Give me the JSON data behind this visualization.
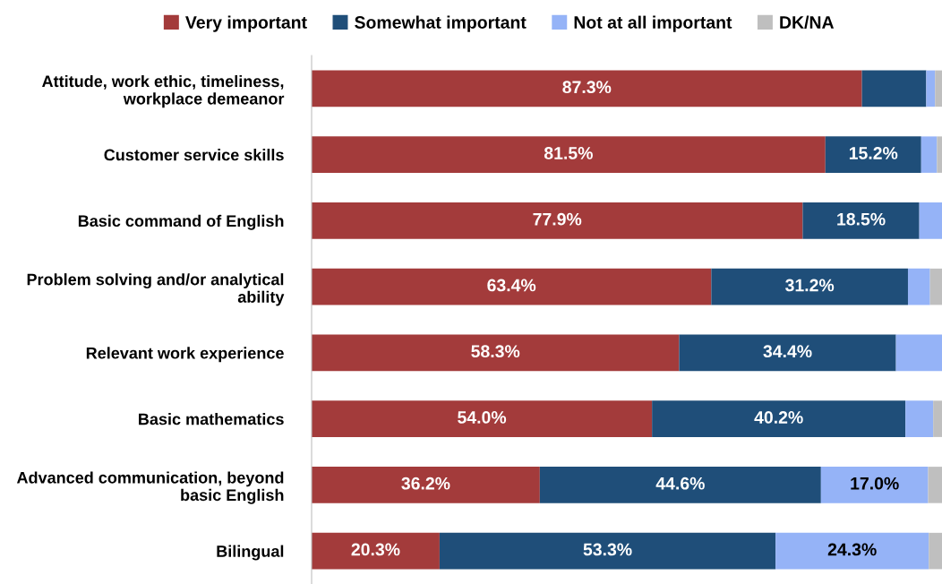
{
  "chart_data": {
    "type": "bar",
    "orientation": "horizontal",
    "stacked": true,
    "xlim": [
      0,
      100
    ],
    "grid": false,
    "legend": "top",
    "categories": [
      "Attitude, work ethic, timeliness,\nworkplace demeanor",
      "Customer service skills",
      "Basic command of English",
      "Problem solving and/or analytical\nability",
      "Relevant work experience",
      "Basic mathematics",
      "Advanced communication, beyond\nbasic English",
      "Bilingual"
    ],
    "series": [
      {
        "name": "Very important",
        "color": "#a33b3b",
        "values": [
          87.3,
          81.5,
          77.9,
          63.4,
          58.3,
          54.0,
          36.2,
          20.3
        ],
        "value_labels": [
          "87.3%",
          "81.5%",
          "77.9%",
          "63.4%",
          "58.3%",
          "54.0%",
          "36.2%",
          "20.3%"
        ]
      },
      {
        "name": "Somewhat important",
        "color": "#1f4e79",
        "values": [
          10.2,
          15.2,
          18.5,
          31.2,
          34.4,
          40.2,
          44.6,
          53.3
        ],
        "value_labels": [
          null,
          "15.2%",
          "18.5%",
          "31.2%",
          "34.4%",
          "40.2%",
          "44.6%",
          "53.3%"
        ]
      },
      {
        "name": "Not at all important",
        "color": "#95b3f7",
        "values": [
          1.4,
          2.5,
          3.6,
          3.5,
          7.3,
          4.4,
          17.0,
          24.3
        ],
        "value_labels": [
          null,
          null,
          null,
          null,
          null,
          null,
          "17.0%",
          "24.3%"
        ]
      },
      {
        "name": "DK/NA",
        "color": "#bfbfbf",
        "values": [
          1.1,
          0.8,
          0.0,
          1.9,
          0.0,
          1.4,
          2.2,
          2.1
        ],
        "value_labels": [
          null,
          null,
          null,
          null,
          null,
          null,
          null,
          null
        ]
      }
    ]
  }
}
